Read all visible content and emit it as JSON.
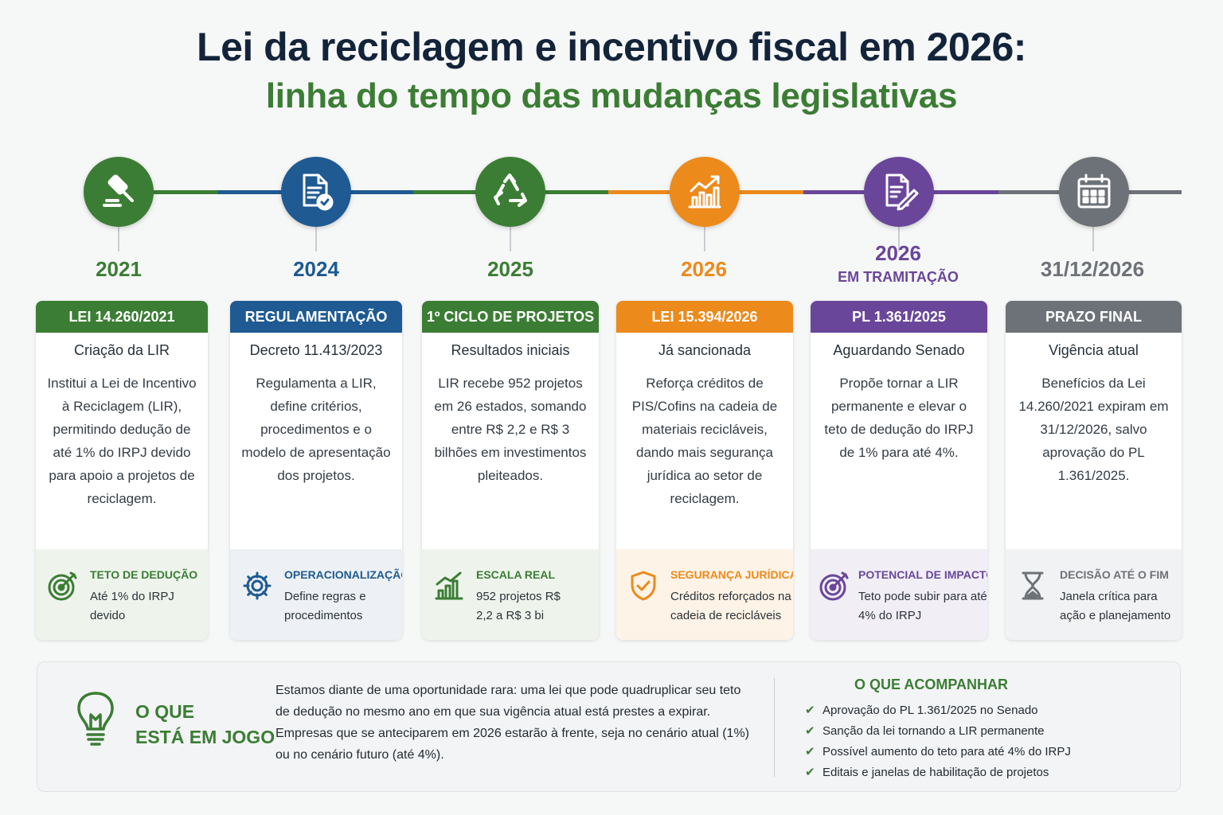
{
  "header": {
    "title": "Lei da reciclagem e incentivo fiscal em 2026:",
    "subtitle": "linha do tempo das mudanças legislativas"
  },
  "milestones": [
    {
      "year": "2021",
      "year_sub": "",
      "color": "#3b7d34",
      "icon": "gavel-icon",
      "card_title": "LEI 14.260/2021",
      "card_subtitle": "Criação da LIR",
      "card_body": "Institui a Lei de Incentivo à Reciclagem (LIR), permitindo dedução de até 1% do IRPJ devido para apoio a projetos de reciclagem.",
      "foot_icon": "target-icon",
      "foot_title": "TETO DE DEDUÇÃO",
      "foot_desc": "Até 1% do IRPJ devido",
      "foot_bg": "#eef4ec"
    },
    {
      "year": "2024",
      "year_sub": "",
      "color": "#1f5a92",
      "icon": "document-check-icon",
      "card_title": "REGULAMENTAÇÃO",
      "card_subtitle": "Decreto 11.413/2023",
      "card_body": "Regulamenta a LIR, define critérios, procedimentos e o modelo de apresentação dos projetos.",
      "foot_icon": "gear-icon",
      "foot_title": "OPERACIONALIZAÇÃO",
      "foot_desc": "Define regras e procedimentos",
      "foot_bg": "#edf1f5"
    },
    {
      "year": "2025",
      "year_sub": "",
      "color": "#3b7d34",
      "icon": "recycle-icon",
      "card_title": "1º CICLO DE PROJETOS",
      "card_subtitle": "Resultados iniciais",
      "card_body": "LIR recebe 952 projetos em 26 estados, somando entre R$ 2,2 e R$ 3 bilhões em investimentos pleiteados.",
      "foot_icon": "bar-chart-icon",
      "foot_title": "ESCALA REAL",
      "foot_desc": "952 projetos R$ 2,2 a R$ 3 bi",
      "foot_bg": "#eef4ec"
    },
    {
      "year": "2026",
      "year_sub": "",
      "color": "#ec8a1c",
      "icon": "growth-chart-icon",
      "card_title": "LEI 15.394/2026",
      "card_subtitle": "Já sancionada",
      "card_body": "Reforça créditos de PIS/Cofins na cadeia de materiais recicláveis, dando mais segurança jurídica ao setor de reciclagem.",
      "foot_icon": "shield-check-icon",
      "foot_title": "SEGURANÇA JURÍDICA",
      "foot_desc": "Créditos reforçados na cadeia de recicláveis",
      "foot_bg": "#fdf3e6"
    },
    {
      "year": "2026",
      "year_sub": "EM TRAMITAÇÃO",
      "color": "#6a469a",
      "icon": "document-pen-icon",
      "card_title": "PL 1.361/2025",
      "card_subtitle": "Aguardando Senado",
      "card_body": "Propõe tornar a LIR permanente e elevar o teto de dedução do IRPJ de 1% para até 4%.",
      "foot_icon": "target-icon",
      "foot_title": "POTENCIAL DE IMPACTO",
      "foot_desc": "Teto pode subir para até 4% do IRPJ",
      "foot_bg": "#f1eef6"
    },
    {
      "year": "31/12/2026",
      "year_sub": "",
      "color": "#6d7278",
      "icon": "calendar-icon",
      "card_title": "PRAZO FINAL",
      "card_subtitle": "Vigência atual",
      "card_body": "Benefícios da Lei 14.260/2021 expiram em 31/12/2026, salvo aprovação do PL 1.361/2025.",
      "foot_icon": "hourglass-icon",
      "foot_title": "DECISÃO ATÉ O FIM",
      "foot_desc": "Janela crítica para ação e planejamento",
      "foot_bg": "#f1f2f3"
    }
  ],
  "stakes": {
    "title_line1": "O QUE",
    "title_line2": "ESTÁ EM JOGO",
    "text": "Estamos diante de uma oportunidade rara: uma lei que pode quadruplicar seu teto de dedução no mesmo ano em que sua vigência atual está prestes a expirar. Empresas que se anteciparem em 2026 estarão à frente, seja no cenário atual (1%) ou no cenário futuro (até 4%)."
  },
  "watch": {
    "title": "O QUE ACOMPANHAR",
    "items": [
      "Aprovação do PL 1.361/2025 no Senado",
      "Sanção da lei tornando a LIR permanente",
      "Possível aumento do teto para até 4% do IRPJ",
      "Editais e janelas de habilitação de projetos"
    ]
  },
  "colors": {
    "green": "#3b7d34",
    "blue": "#1f5a92",
    "orange": "#ec8a1c",
    "purple": "#6a469a",
    "gray": "#6d7278",
    "navy": "#13243a"
  }
}
